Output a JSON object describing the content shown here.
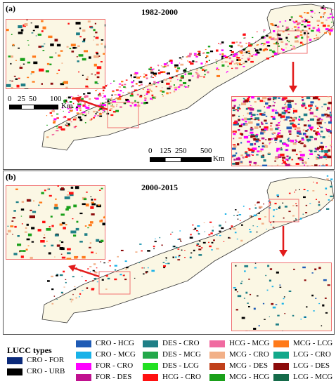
{
  "panels": [
    {
      "label": "(a)",
      "period": "1982-2000"
    },
    {
      "label": "(b)",
      "period": "2000-2015"
    }
  ],
  "scalebars": {
    "inset": {
      "ticks": [
        "0",
        "25",
        "50",
        "100"
      ],
      "unit": "Km"
    },
    "main": {
      "ticks": [
        "0",
        "125",
        "250",
        "500"
      ],
      "unit": "Km"
    }
  },
  "legend": {
    "title": "LUCC types",
    "items": [
      {
        "label": "CRO - FOR",
        "color": "#0b2a7a"
      },
      {
        "label": "CRO - URB",
        "color": "#000000"
      },
      {
        "label": "CRO - HCG",
        "color": "#1f5bb5"
      },
      {
        "label": "CRO - MCG",
        "color": "#19b2e8"
      },
      {
        "label": "FOR - CRO",
        "color": "#ff00ff"
      },
      {
        "label": "FOR - DES",
        "color": "#c0118f"
      },
      {
        "label": "DES - CRO",
        "color": "#1f7f86"
      },
      {
        "label": "DES - MCG",
        "color": "#23a84a"
      },
      {
        "label": "DES - LCG",
        "color": "#22e022"
      },
      {
        "label": "HCG - CRO",
        "color": "#ff1010"
      },
      {
        "label": "HCG - MCG",
        "color": "#f06aa0"
      },
      {
        "label": "MCG - CRO",
        "color": "#f2b088"
      },
      {
        "label": "MCG - DES",
        "color": "#c0401a"
      },
      {
        "label": "MCG - HCG",
        "color": "#1aa01a"
      },
      {
        "label": "MCG - LCG",
        "color": "#ff7a1a"
      },
      {
        "label": "LCG - CRO",
        "color": "#12a88a"
      },
      {
        "label": "LCG - DES",
        "color": "#8b0a0a"
      },
      {
        "label": "LCG - MCG",
        "color": "#156b4a"
      }
    ]
  },
  "colors": {
    "land": "#fbf7e4",
    "boundary": "#333333",
    "inset_frame": "#f07070",
    "arrow": "#e21b1b"
  }
}
